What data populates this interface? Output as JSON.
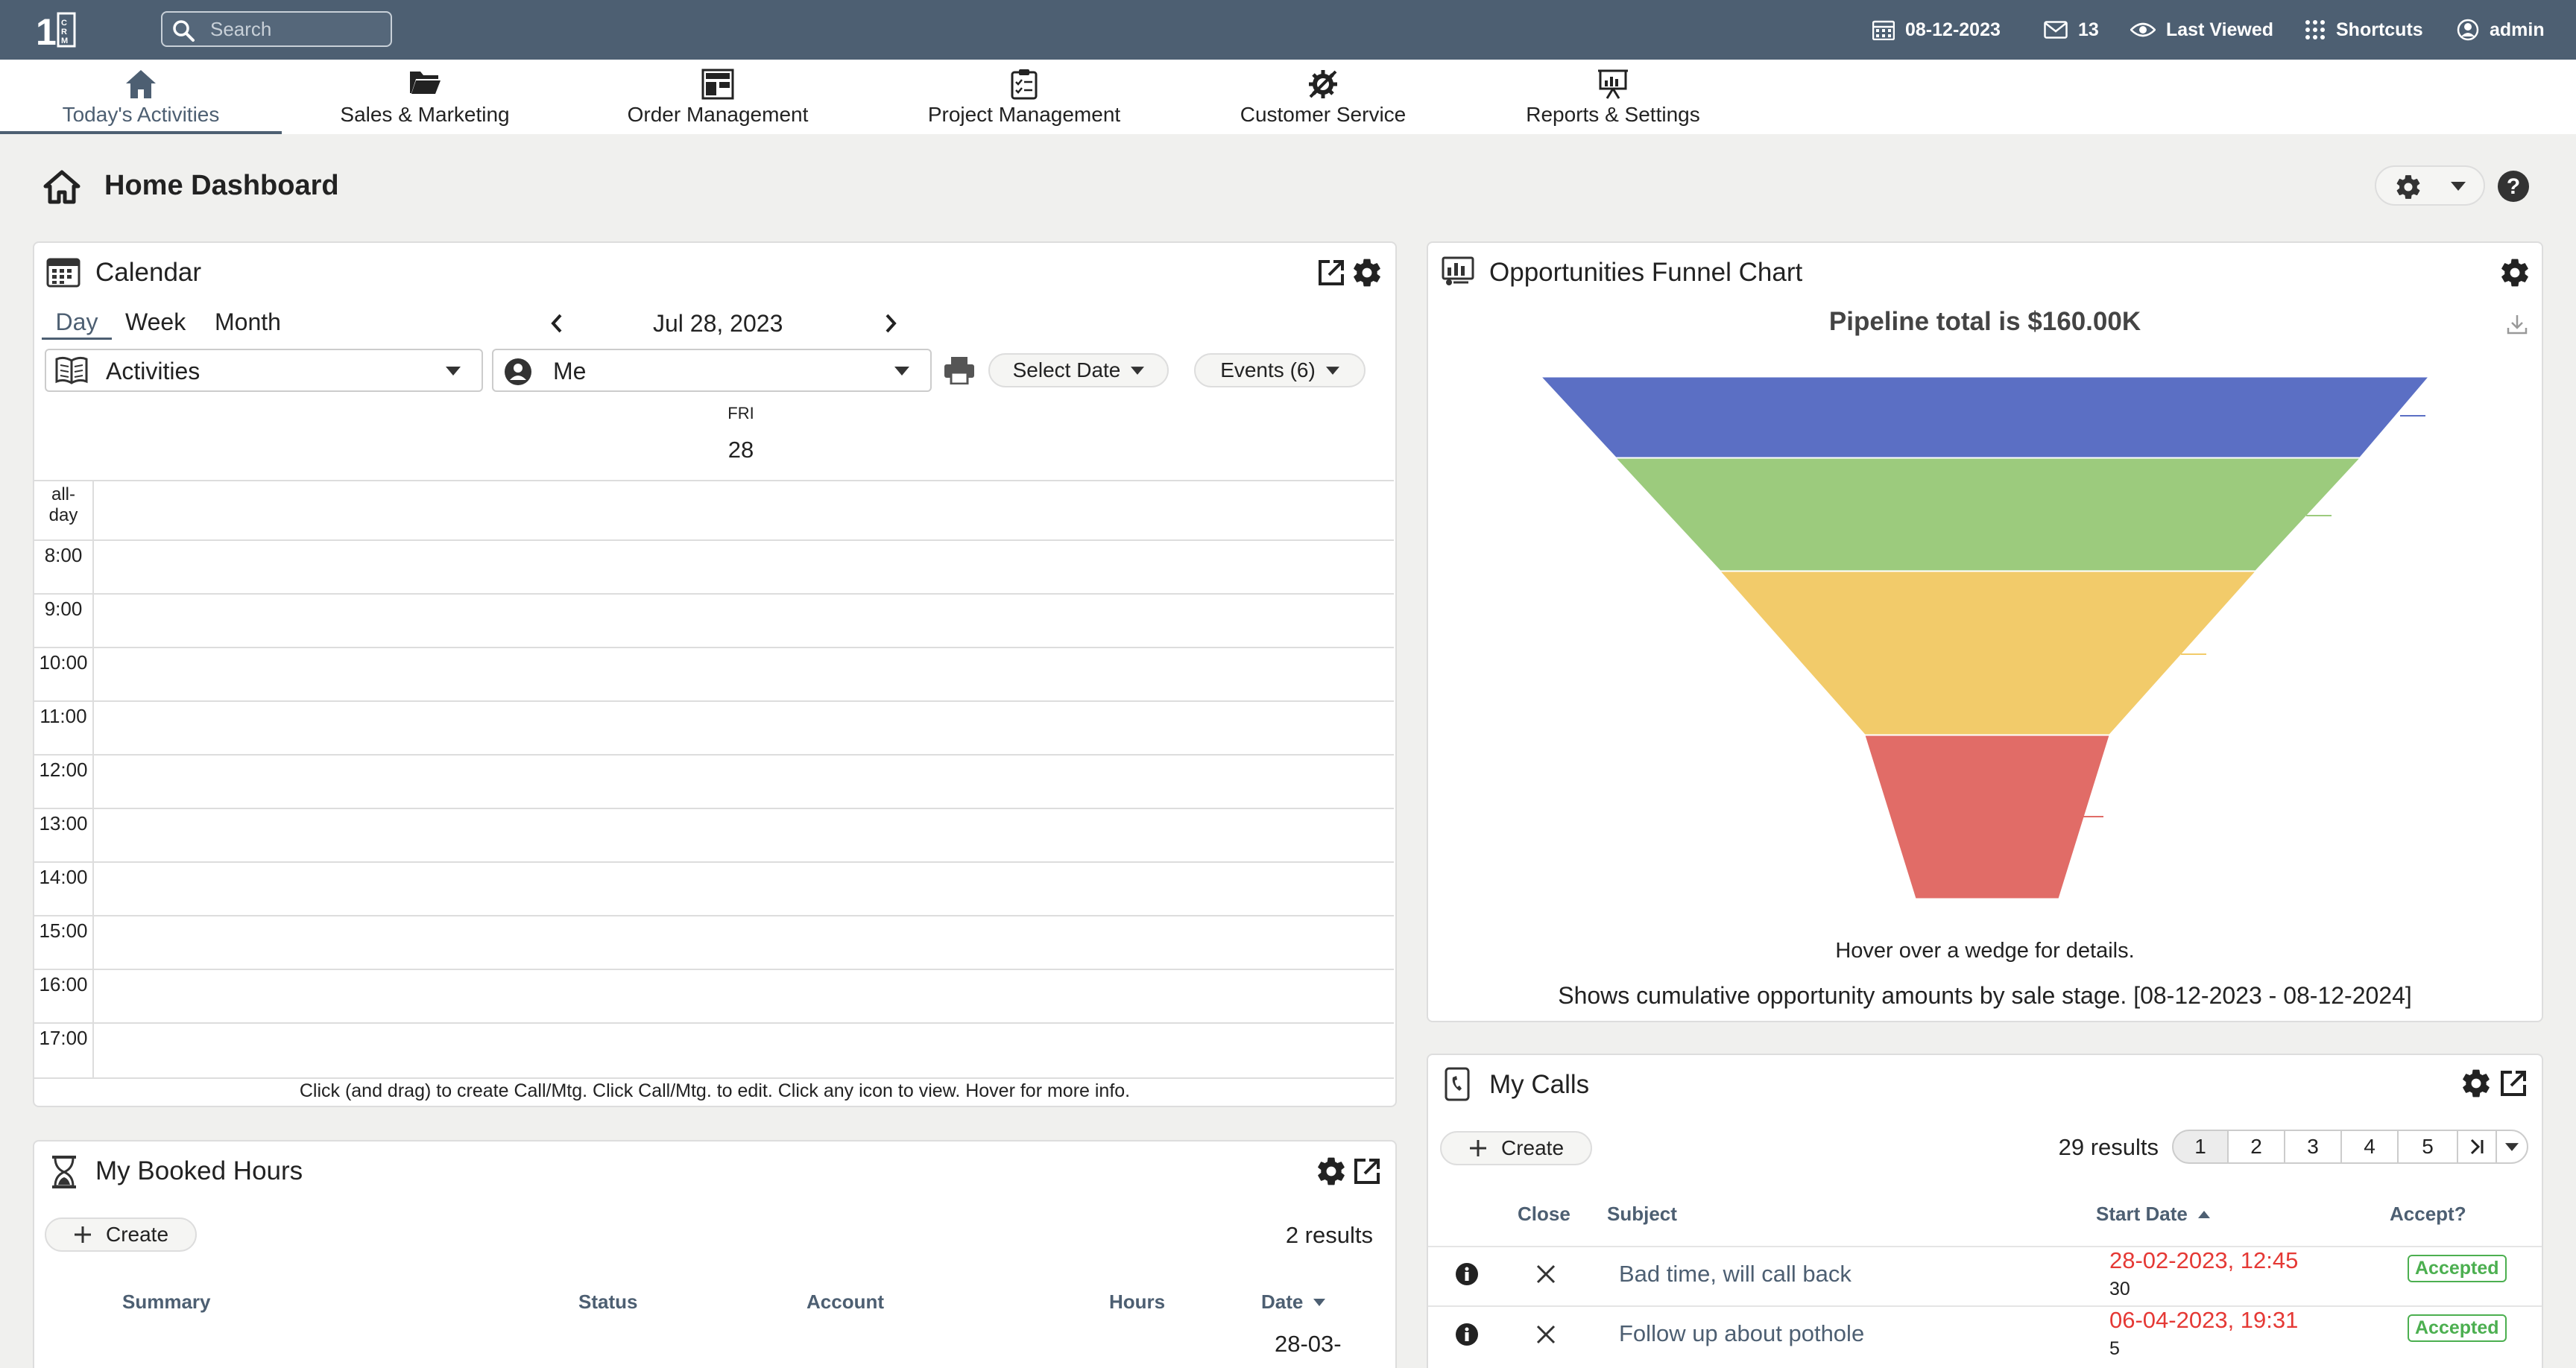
{
  "topbar": {
    "search_placeholder": "Search",
    "date": "08-12-2023",
    "mail_count": "13",
    "last_viewed": "Last Viewed",
    "shortcuts": "Shortcuts",
    "user": "admin"
  },
  "nav": {
    "tabs": [
      {
        "label": "Today's Activities"
      },
      {
        "label": "Sales & Marketing"
      },
      {
        "label": "Order Management"
      },
      {
        "label": "Project Management"
      },
      {
        "label": "Customer Service"
      },
      {
        "label": "Reports & Settings"
      }
    ]
  },
  "page": {
    "title": "Home Dashboard"
  },
  "calendar": {
    "title": "Calendar",
    "views": [
      "Day",
      "Week",
      "Month"
    ],
    "current_date": "Jul 28, 2023",
    "type_filter": "Activities",
    "user_filter": "Me",
    "select_date": "Select Date",
    "events": "Events (6)",
    "day_name": "FRI",
    "day_number": "28",
    "allday": "all-day",
    "hours": [
      "8:00",
      "9:00",
      "10:00",
      "11:00",
      "12:00",
      "13:00",
      "14:00",
      "15:00",
      "16:00",
      "17:00"
    ],
    "footer": "Click (and drag) to create Call/Mtg. Click Call/Mtg. to edit. Click any icon to view. Hover for more info."
  },
  "funnel": {
    "title": "Opportunities Funnel Chart",
    "hint": "Hover over a wedge for details.",
    "footer": "Shows cumulative opportunity amounts by sale stage. [08-12-2023 - 08-12-2024]"
  },
  "chart_data": {
    "type": "funnel",
    "title": "Pipeline total is $160.00K",
    "stage_colors": [
      "#5b6fc4",
      "#9ccb7d",
      "#f2cb6a",
      "#e16c67"
    ]
  },
  "booked": {
    "title": "My Booked Hours",
    "create": "Create",
    "results": "2 results",
    "columns": [
      "Summary",
      "Status",
      "Account",
      "Hours",
      "Date"
    ],
    "row_date": "28-03-"
  },
  "calls": {
    "title": "My Calls",
    "create": "Create",
    "results": "29 results",
    "pages": [
      "1",
      "2",
      "3",
      "4",
      "5"
    ],
    "columns": [
      "Close",
      "Subject",
      "Start Date",
      "Accept?"
    ],
    "rows": [
      {
        "subject": "Bad time, will call back",
        "date": "28-02-2023, 12:45",
        "minutes": "30",
        "status": "Accepted"
      },
      {
        "subject": "Follow up about pothole",
        "date": "06-04-2023, 19:31",
        "minutes": "5",
        "status": "Accepted"
      }
    ]
  }
}
